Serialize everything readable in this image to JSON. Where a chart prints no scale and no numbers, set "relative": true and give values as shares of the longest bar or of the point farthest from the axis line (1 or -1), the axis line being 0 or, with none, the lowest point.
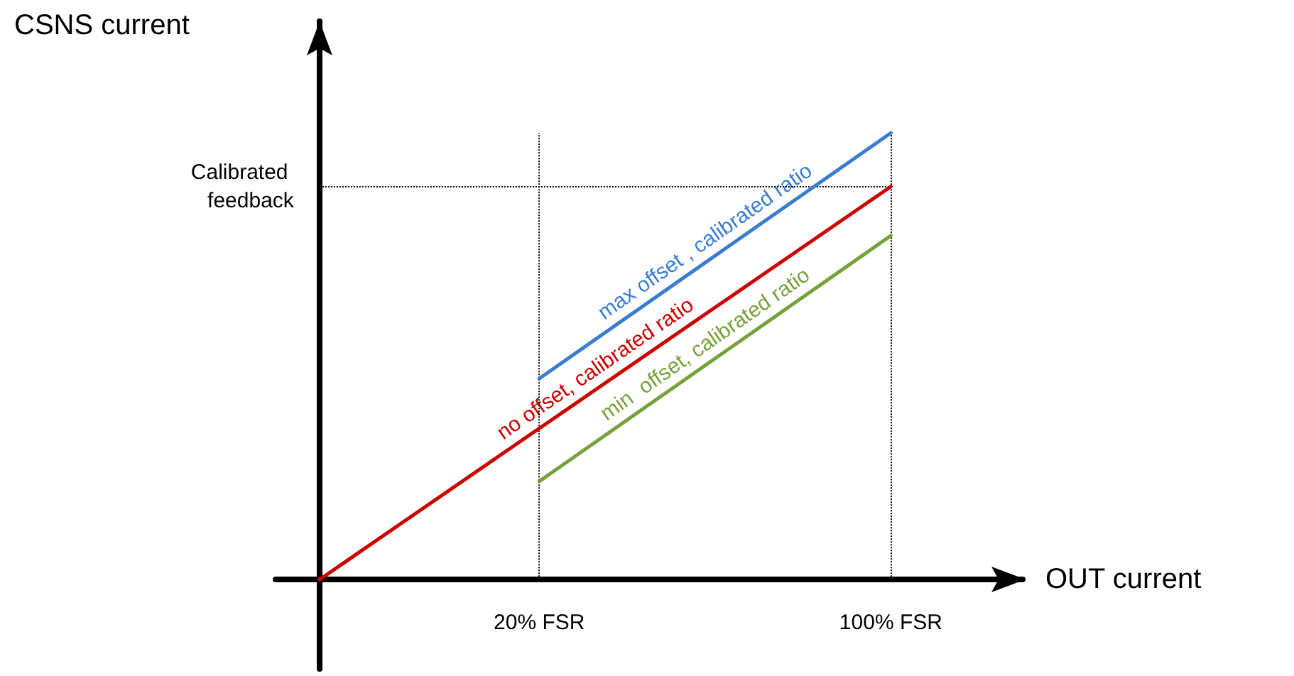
{
  "chart_data": {
    "type": "line",
    "relative": true,
    "xlabel": "OUT current",
    "ylabel": "CSNS current",
    "categories": [
      null,
      null,
      null,
      null,
      null,
      null,
      "20% FSR",
      null,
      null,
      null,
      null,
      null,
      null,
      null,
      "100% FSR",
      null,
      null,
      null
    ],
    "series": [
      {
        "name": "max offset , calibrated ratio",
        "color": "#3a7dd0",
        "values": [
          null,
          null,
          null,
          null,
          null,
          null,
          0.45,
          null,
          null,
          null,
          null,
          null,
          null,
          null,
          1,
          null,
          null,
          null
        ]
      },
      {
        "name": "no offset, calibrated ratio",
        "color": "#cc0000",
        "values": [
          null,
          0,
          null,
          null,
          null,
          null,
          null,
          null,
          null,
          null,
          null,
          null,
          null,
          null,
          0.88,
          null,
          null,
          null
        ]
      },
      {
        "name": "min  offset, calibrated ratio",
        "color": "#77a13a",
        "values": [
          null,
          null,
          null,
          null,
          null,
          null,
          0.22,
          null,
          null,
          null,
          null,
          null,
          null,
          null,
          0.77,
          null,
          null,
          null
        ]
      }
    ],
    "ref_lines": [
      {
        "axis": "y",
        "value": 0.88,
        "label": "Calibrated feedback",
        "line_style": "dotted",
        "color": "#000000"
      },
      {
        "axis": "x",
        "value": "20% FSR",
        "line_style": "dotted",
        "color": "#000000"
      },
      {
        "axis": "x",
        "value": "100% FSR",
        "line_style": "dotted",
        "color": "#000000"
      }
    ],
    "marker": "none",
    "line_style": "solid",
    "grid": false,
    "legend": false
  }
}
